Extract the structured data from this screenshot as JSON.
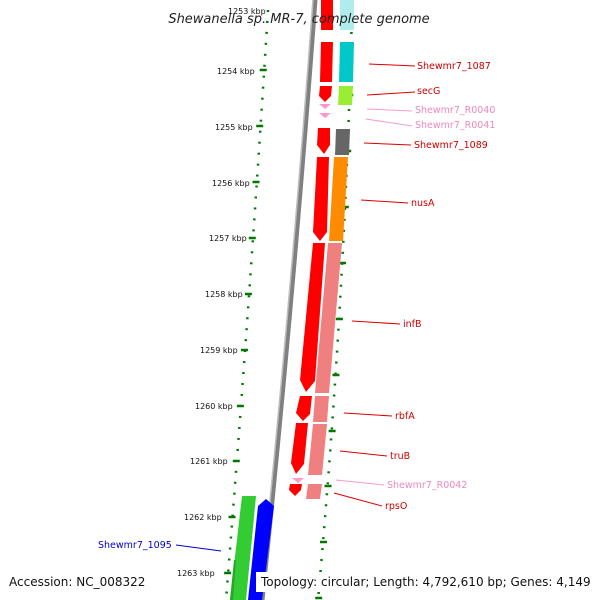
{
  "title": "Shewanella sp. MR-7, complete genome",
  "accession": "Accession: NC_008322",
  "topology": "Topology: circular; Length: 4,792,610 bp; Genes: 4,149",
  "colors": {
    "cds": "#ff0000",
    "cds_light": "#f08080",
    "rna": "#ff99cc",
    "cyan": "#00c8c8",
    "lime": "#99ee33",
    "gray": "#666666",
    "orange": "#ff8c00",
    "green": "#33cc33",
    "blue": "#0000ff",
    "backbone": "#808080",
    "ticks": "#007700"
  },
  "scale_labels": [
    "1254 kbp",
    "1255 kbp",
    "1256 kbp",
    "1257 kbp",
    "1258 kbp",
    "1259 kbp",
    "1260 kbp",
    "1261 kbp",
    "1262 kbp",
    "1263 kbp"
  ],
  "gene_labels": [
    {
      "text": "Shewmr7_1087",
      "color": "#cc0000"
    },
    {
      "text": "secG",
      "color": "#cc0000"
    },
    {
      "text": "Shewmr7_R0040",
      "color": "#ee88bb"
    },
    {
      "text": "Shewmr7_R0041",
      "color": "#ee88bb"
    },
    {
      "text": "Shewmr7_1089",
      "color": "#cc0000"
    },
    {
      "text": "nusA",
      "color": "#cc0000"
    },
    {
      "text": "infB",
      "color": "#cc0000"
    },
    {
      "text": "rbfA",
      "color": "#cc0000"
    },
    {
      "text": "truB",
      "color": "#cc0000"
    },
    {
      "text": "Shewmr7_R0042",
      "color": "#ee88bb"
    },
    {
      "text": "rpsO",
      "color": "#cc0000"
    },
    {
      "text": "Shewmr7_1095",
      "color": "#0000cc"
    }
  ]
}
